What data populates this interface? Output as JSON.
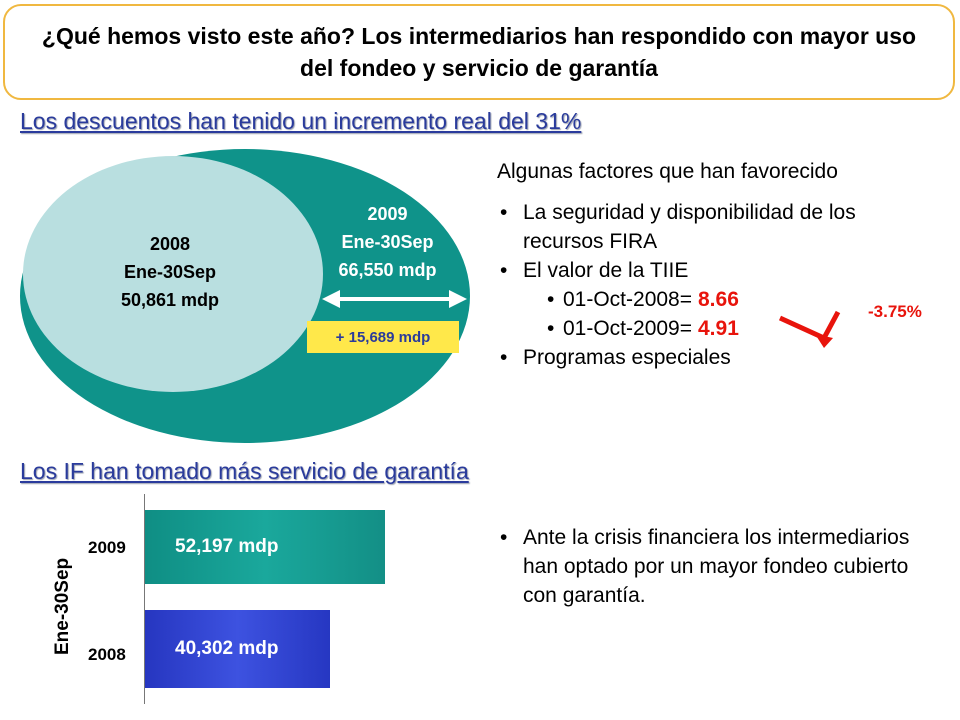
{
  "header": {
    "title": "¿Qué hemos visto este año? Los intermediarios han respondido con mayor uso del fondeo y servicio de garantía"
  },
  "section1": {
    "heading": "Los descuentos han tenido un incremento real del 31%",
    "inner": {
      "year": "2008",
      "period": "Ene-30Sep",
      "amount": "50,861 mdp"
    },
    "outer": {
      "year": "2009",
      "period": "Ene-30Sep",
      "amount": "66,550 mdp"
    },
    "increment": "+ 15,689 mdp",
    "factors": {
      "lead": "Algunas factores que han favorecido",
      "item1": "La seguridad y disponibilidad de los recursos FIRA",
      "item2": "El valor de la TIIE",
      "rate1_label": "01-Oct-2008=",
      "rate1_value": "8.66",
      "rate2_label": "01-Oct-2009=",
      "rate2_value": "4.91",
      "item3": "Programas especiales",
      "change": "-3.75%"
    }
  },
  "section2": {
    "heading": "Los IF han tomado más servicio de garantía",
    "axis_label": "Ene-30Sep",
    "bars": [
      {
        "year": "2009",
        "value": 52197,
        "label": "52,197 mdp",
        "color": "#1aa89c"
      },
      {
        "year": "2008",
        "value": 40302,
        "label": "40,302 mdp",
        "color": "#3d52e0"
      }
    ],
    "note": "Ante la crisis financiera los intermediarios han optado por un mayor fondeo cubierto con garantía."
  },
  "colors": {
    "teal": "#0f938a",
    "light_teal": "#b9dfe0",
    "red": "#e8140c",
    "heading_blue": "#2a3b9c",
    "yellow": "#ffe84a",
    "border_orange": "#f0b840"
  }
}
